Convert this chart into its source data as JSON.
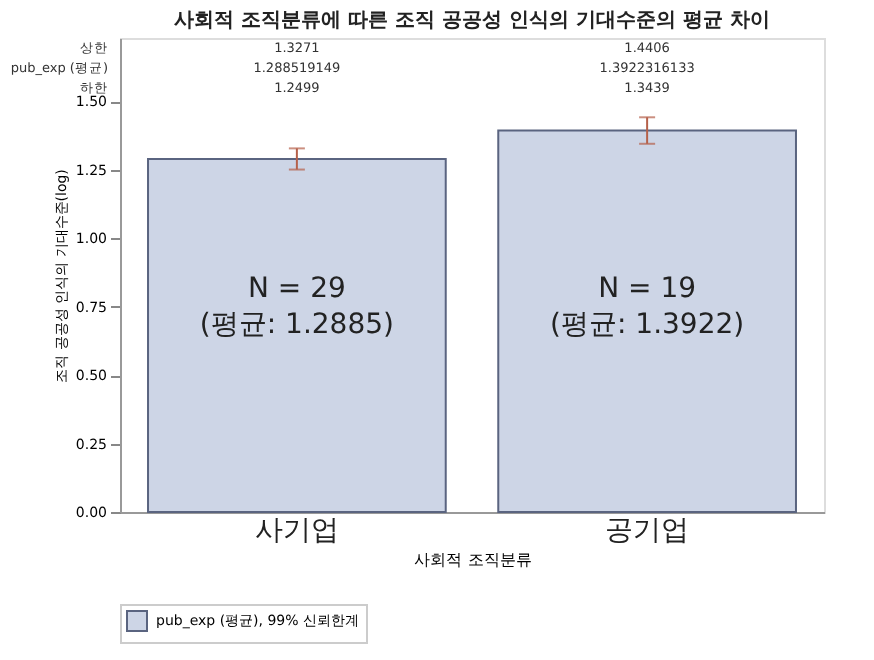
{
  "chart_data": {
    "type": "bar",
    "title": "사회적 조직분류에 따른 조직 공공성 인식의 기대수준의 평균 차이",
    "xlabel": "사회적 조직분류",
    "ylabel": "조직 공공성 인식의 기대수준(log)",
    "categories": [
      "사기업",
      "공기업"
    ],
    "series": [
      {
        "name": "pub_exp (평균), 99% 신뢰한계",
        "color": "#cdd5e6",
        "values": [
          1.2885,
          1.3922
        ],
        "errors": [
          [
            1.2499,
            1.3271
          ],
          [
            1.3439,
            1.4406
          ]
        ]
      }
    ],
    "ylim": [
      0,
      1.73
    ],
    "yticks": [
      {
        "value": 0,
        "label": "0.00"
      },
      {
        "value": 0.25,
        "label": "0.25"
      },
      {
        "value": 0.5,
        "label": "0.50"
      },
      {
        "value": 0.75,
        "label": "0.75"
      },
      {
        "value": 1,
        "label": "1.00"
      },
      {
        "value": 1.25,
        "label": "1.25"
      },
      {
        "value": 1.5,
        "label": "1.50"
      }
    ],
    "grid": false,
    "legend": "bottom",
    "annotations": [
      "상한",
      "pub_exp (평균)",
      "하한",
      "1.3271",
      "1.288519149",
      "1.2499",
      "1.4406",
      "1.3922316133",
      "1.3439",
      "N = 29",
      "(평균: 1.2885)",
      "N = 19",
      "(평균: 1.3922)"
    ]
  }
}
